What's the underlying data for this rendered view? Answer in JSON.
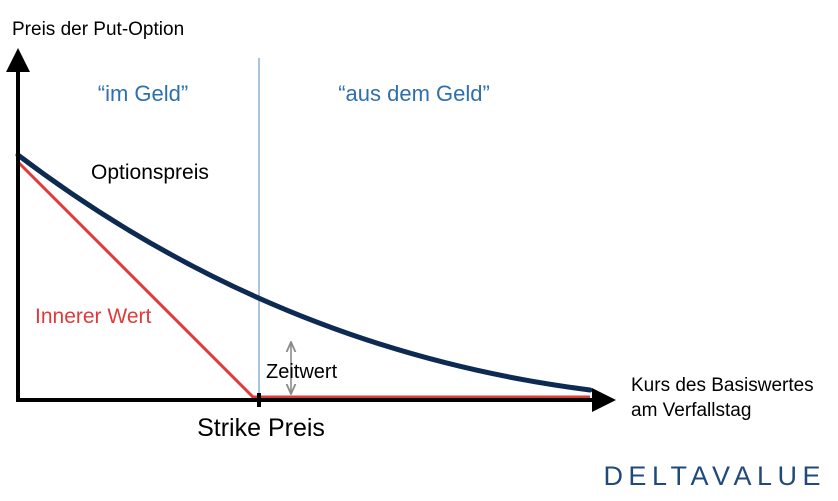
{
  "labels": {
    "y_axis": "Preis der Put-Option",
    "x_axis_line1": "Kurs des Basiswertes",
    "x_axis_line2": "am Verfallstag",
    "strike": "Strike Preis",
    "in_the_money": "“im Geld”",
    "out_of_the_money": "“aus dem Geld”",
    "option_price": "Optionspreis",
    "intrinsic_value": "Innerer Wert",
    "time_value": "Zeitwert"
  },
  "brand": {
    "name": "DELTAVALUE"
  },
  "colors": {
    "option_curve": "#0d2a52",
    "intrinsic_line": "#e03a3a",
    "region_label": "#2e6fb0",
    "divider": "#a9c4dd",
    "arrow": "#8a8a8a",
    "axis": "#000000",
    "brand": "#1f4a7a"
  }
}
